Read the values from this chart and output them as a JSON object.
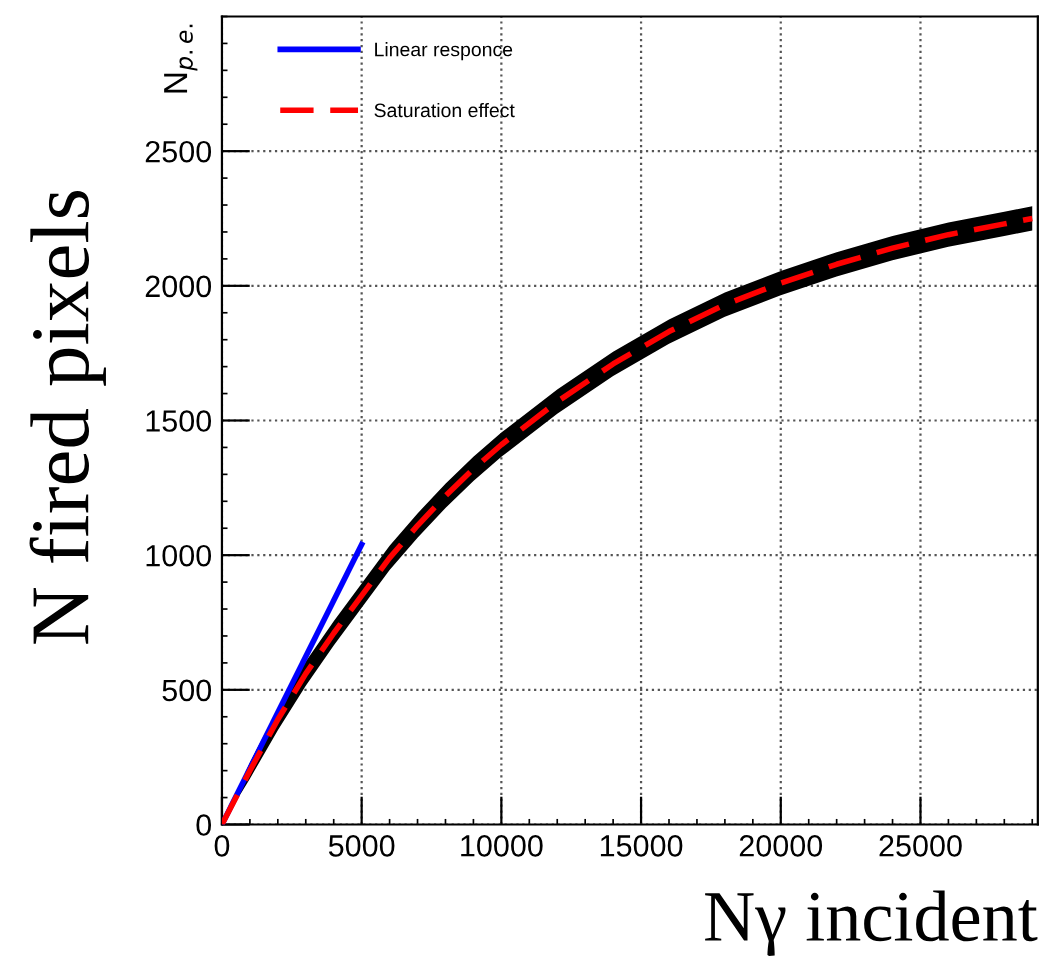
{
  "chart_data": {
    "type": "line",
    "xlabel": "Nγ incident",
    "ylabel": "N$_{p.e.}$",
    "annotations": [
      "N fired pixels"
    ],
    "xlim": [
      0,
      29200
    ],
    "ylim": [
      0,
      3000
    ],
    "xticks": [
      0,
      5000,
      10000,
      15000,
      20000,
      25000
    ],
    "yticks": [
      0,
      500,
      1000,
      1500,
      2000,
      2500
    ],
    "grid": true,
    "legend": "top left",
    "series": [
      {
        "color": "#000000",
        "x": [
          0,
          1000,
          2000,
          3000,
          4000,
          5000,
          6000,
          7000,
          8000,
          9000,
          10000,
          12000,
          14000,
          16000,
          18000,
          20000,
          22000,
          24000,
          26000,
          28000,
          29000
        ],
        "values": [
          null,
          null,
          null,
          null,
          null,
          null,
          null,
          null,
          null,
          null,
          null,
          null,
          null,
          null,
          null,
          null,
          null,
          null,
          null,
          null,
          null
        ],
        "lower": [
          0,
          170,
          350,
          515,
          665,
          805,
          945,
          1065,
          1175,
          1275,
          1365,
          1525,
          1665,
          1785,
          1885,
          1965,
          2035,
          2095,
          2145,
          2185,
          2205
        ],
        "upper": [
          0,
          230,
          430,
          605,
          755,
          895,
          1035,
          1155,
          1265,
          1365,
          1455,
          1615,
          1755,
          1875,
          1975,
          2055,
          2125,
          2185,
          2235,
          2275,
          2295
        ]
      },
      {
        "name": "Linear responce",
        "color": "#0000ff",
        "line_style": "solid",
        "x": [
          0,
          5000
        ],
        "values": [
          0,
          1040
        ]
      },
      {
        "name": "Saturation effect",
        "color": "#ff0000",
        "line_style": "dashed",
        "x": [
          0,
          1000,
          2000,
          3000,
          4000,
          5000,
          6000,
          7000,
          8000,
          9000,
          10000,
          12000,
          14000,
          16000,
          18000,
          20000,
          22000,
          24000,
          26000,
          28000,
          29000
        ],
        "values": [
          0,
          200,
          390,
          560,
          710,
          850,
          990,
          1110,
          1220,
          1320,
          1410,
          1570,
          1710,
          1830,
          1930,
          2010,
          2080,
          2140,
          2190,
          2230,
          2250
        ]
      }
    ]
  }
}
